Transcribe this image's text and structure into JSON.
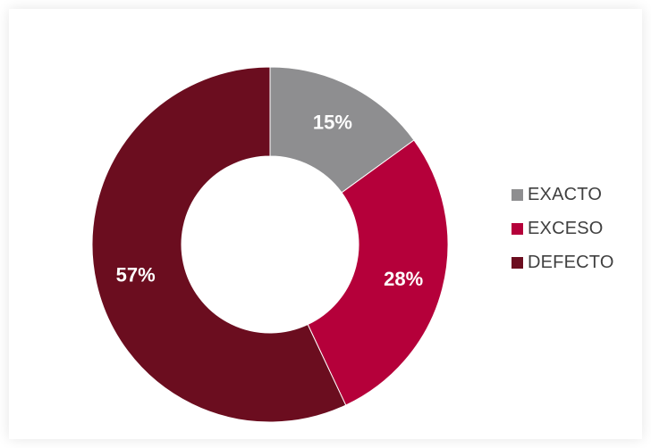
{
  "chart_data": {
    "type": "pie",
    "variant": "donut",
    "title": "",
    "categories": [
      "EXACTO",
      "EXCESO",
      "DEFECTO"
    ],
    "values": [
      15,
      28,
      57
    ],
    "labels": [
      "15%",
      "28%",
      "57%"
    ],
    "colors": [
      "#8e8e90",
      "#b5003a",
      "#6b0d1f"
    ],
    "legend_position": "right"
  }
}
